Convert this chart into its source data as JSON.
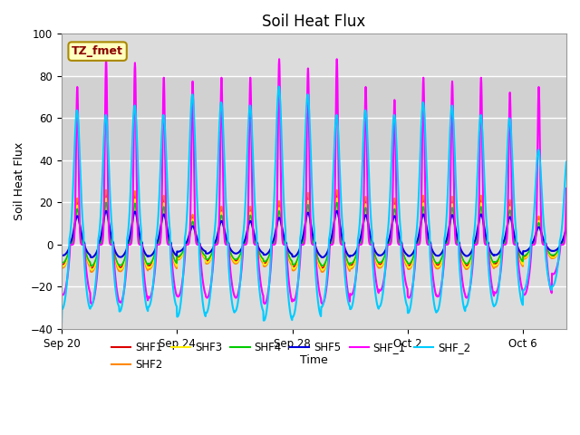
{
  "title": "Soil Heat Flux",
  "xlabel": "Time",
  "ylabel": "Soil Heat Flux",
  "ylim": [
    -40,
    100
  ],
  "xlim_days": [
    0,
    17.5
  ],
  "x_ticks_days": [
    0,
    4,
    8,
    12,
    16
  ],
  "x_tick_labels": [
    "Sep 20",
    "Sep 24",
    "Sep 28",
    "Oct 2",
    "Oct 6"
  ],
  "y_ticks": [
    -40,
    -20,
    0,
    20,
    40,
    60,
    80,
    100
  ],
  "series": [
    "SHF1",
    "SHF2",
    "SHF3",
    "SHF4",
    "SHF5",
    "SHF_1",
    "SHF_2"
  ],
  "colors": {
    "SHF1": "#dd0000",
    "SHF2": "#ff8800",
    "SHF3": "#ffee00",
    "SHF4": "#00cc00",
    "SHF5": "#0000dd",
    "SHF_1": "#ff00ff",
    "SHF_2": "#00ccff"
  },
  "linewidths": {
    "SHF1": 1.2,
    "SHF2": 1.2,
    "SHF3": 1.2,
    "SHF4": 1.2,
    "SHF5": 1.5,
    "SHF_1": 1.5,
    "SHF_2": 1.5
  },
  "annotation_text": "TZ_fmet",
  "plot_bg_color": "#dcdcdc",
  "fig_bg_color": "#ffffff",
  "grid_color": "#ffffff",
  "shaded_band": [
    40,
    80
  ],
  "peak_days": [
    0.85,
    1.0,
    0.98,
    0.9,
    0.55,
    0.7,
    0.7,
    0.8,
    0.95,
    1.0,
    0.88,
    0.85,
    0.9,
    0.88,
    0.9,
    0.82,
    0.52,
    0.5
  ],
  "peak_days_1": [
    0.85,
    1.0,
    0.98,
    0.9,
    0.88,
    0.9,
    0.9,
    1.0,
    0.95,
    1.0,
    0.85,
    0.78,
    0.9,
    0.88,
    0.9,
    0.82,
    0.85,
    0.5
  ],
  "peak_days_2": [
    0.85,
    0.82,
    0.88,
    0.82,
    0.95,
    0.9,
    0.88,
    1.0,
    0.95,
    0.82,
    0.85,
    0.82,
    0.9,
    0.88,
    0.82,
    0.8,
    0.6,
    0.55
  ]
}
